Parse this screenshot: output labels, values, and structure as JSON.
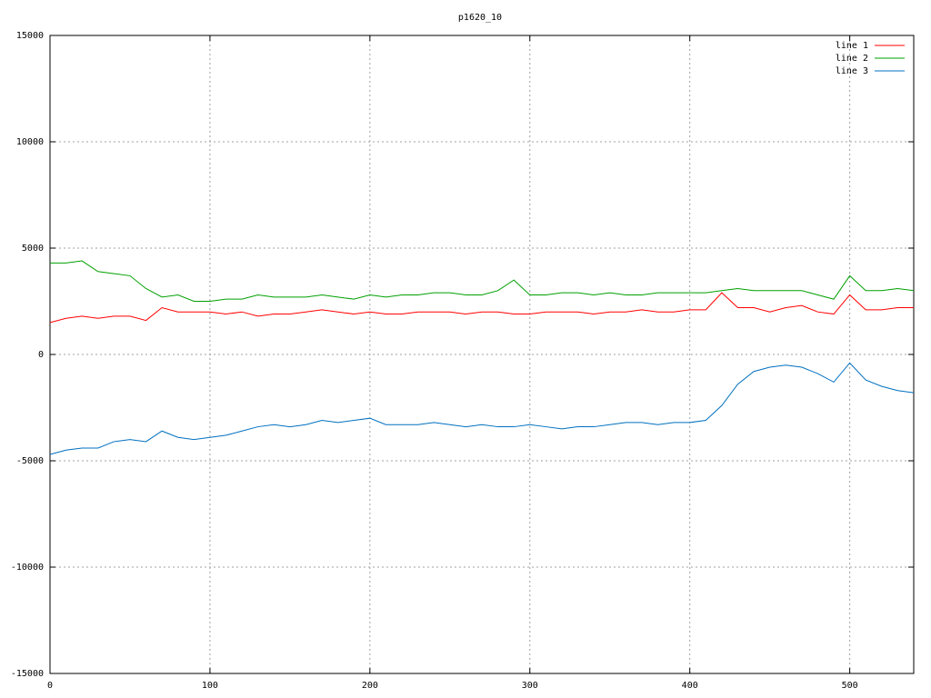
{
  "chart_data": {
    "type": "line",
    "title": "p1620_10",
    "x": [
      0,
      10,
      20,
      30,
      40,
      50,
      60,
      70,
      80,
      90,
      100,
      110,
      120,
      130,
      140,
      150,
      160,
      170,
      180,
      190,
      200,
      210,
      220,
      230,
      240,
      250,
      260,
      270,
      280,
      290,
      300,
      310,
      320,
      330,
      340,
      350,
      360,
      370,
      380,
      390,
      400,
      410,
      420,
      430,
      440,
      450,
      460,
      470,
      480,
      490,
      500,
      510,
      520,
      530,
      540
    ],
    "series": [
      {
        "name": "line 1",
        "color": "#ff0000",
        "values": [
          1500,
          1700,
          1800,
          1700,
          1800,
          1800,
          1600,
          2200,
          2000,
          2000,
          2000,
          1900,
          2000,
          1800,
          1900,
          1900,
          2000,
          2100,
          2000,
          1900,
          2000,
          1900,
          1900,
          2000,
          2000,
          2000,
          1900,
          2000,
          2000,
          1900,
          1900,
          2000,
          2000,
          2000,
          1900,
          2000,
          2000,
          2100,
          2000,
          2000,
          2100,
          2100,
          2900,
          2200,
          2200,
          2000,
          2200,
          2300,
          2000,
          1900,
          2800,
          2100,
          2100,
          2200,
          2200
        ]
      },
      {
        "name": "line 2",
        "color": "#00a000",
        "values": [
          4300,
          4300,
          4400,
          3900,
          3800,
          3700,
          3100,
          2700,
          2800,
          2500,
          2500,
          2600,
          2600,
          2800,
          2700,
          2700,
          2700,
          2800,
          2700,
          2600,
          2800,
          2700,
          2800,
          2800,
          2900,
          2900,
          2800,
          2800,
          3000,
          3500,
          2800,
          2800,
          2900,
          2900,
          2800,
          2900,
          2800,
          2800,
          2900,
          2900,
          2900,
          2900,
          3000,
          3100,
          3000,
          3000,
          3000,
          3000,
          2800,
          2600,
          3700,
          3000,
          3000,
          3100,
          3000
        ]
      },
      {
        "name": "line 3",
        "color": "#0070c0",
        "values": [
          -4700,
          -4500,
          -4400,
          -4400,
          -4100,
          -4000,
          -4100,
          -3600,
          -3900,
          -4000,
          -3900,
          -3800,
          -3600,
          -3400,
          -3300,
          -3400,
          -3300,
          -3100,
          -3200,
          -3100,
          -3000,
          -3300,
          -3300,
          -3300,
          -3200,
          -3300,
          -3400,
          -3300,
          -3400,
          -3400,
          -3300,
          -3400,
          -3500,
          -3400,
          -3400,
          -3300,
          -3200,
          -3200,
          -3300,
          -3200,
          -3200,
          -3100,
          -2400,
          -1400,
          -800,
          -600,
          -500,
          -600,
          -900,
          -1300,
          -400,
          -1200,
          -1500,
          -1700,
          -1800
        ]
      }
    ],
    "xlim": [
      0,
      540
    ],
    "xticks": [
      0,
      100,
      200,
      300,
      400,
      500
    ],
    "ylim": [
      -15000,
      15000
    ],
    "yticks": [
      -15000,
      -10000,
      -5000,
      0,
      5000,
      10000,
      15000
    ],
    "grid": true,
    "legend": "top-right"
  }
}
